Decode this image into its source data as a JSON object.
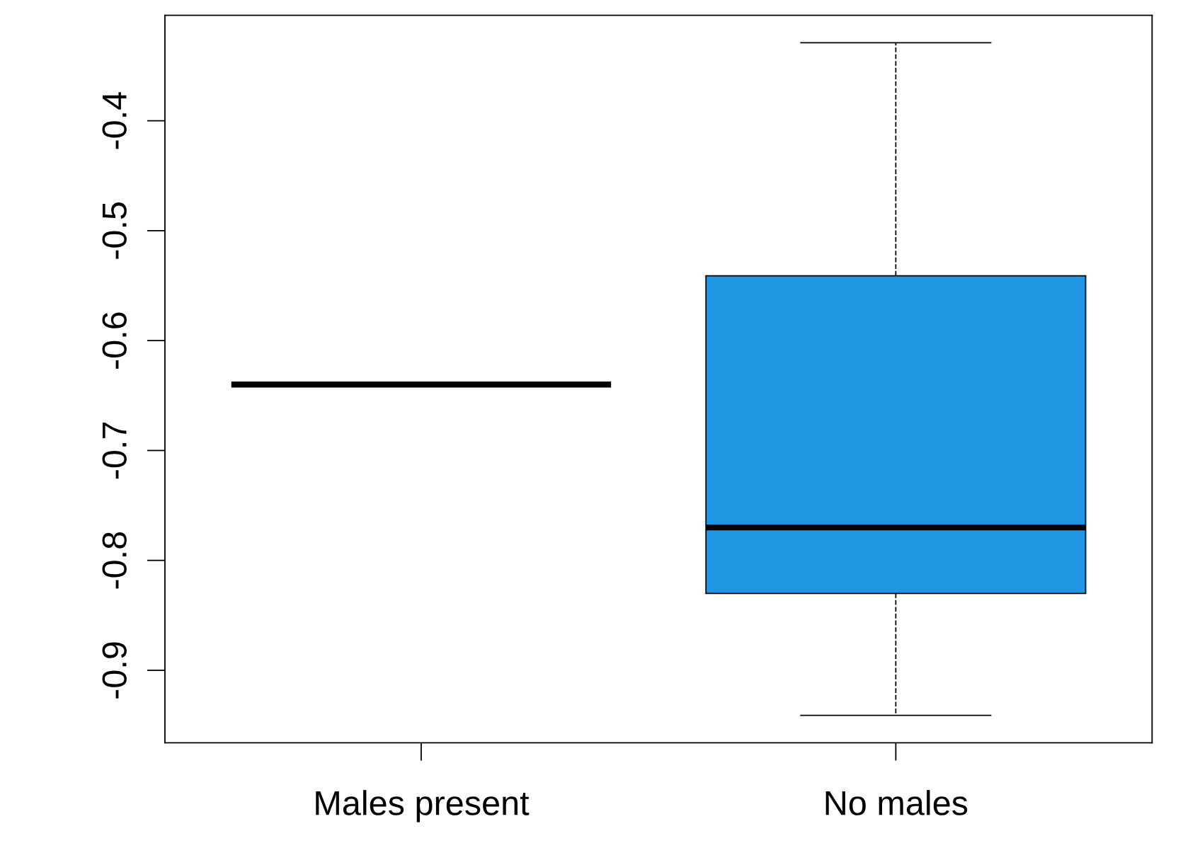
{
  "chart_data": {
    "type": "box",
    "categories": [
      "Males present",
      "No males"
    ],
    "boxes": [
      {
        "low": -0.64,
        "q1": -0.64,
        "median": -0.64,
        "q3": -0.64,
        "high": -0.64
      },
      {
        "low": -0.941,
        "q1": -0.83,
        "median": -0.77,
        "q3": -0.541,
        "high": -0.329
      }
    ],
    "colors": [
      null,
      "#2196e3"
    ],
    "ylim": [
      -0.966,
      -0.304
    ],
    "yticks": [
      -0.4,
      -0.5,
      -0.6,
      -0.7,
      -0.8,
      -0.9
    ],
    "grid": false
  }
}
